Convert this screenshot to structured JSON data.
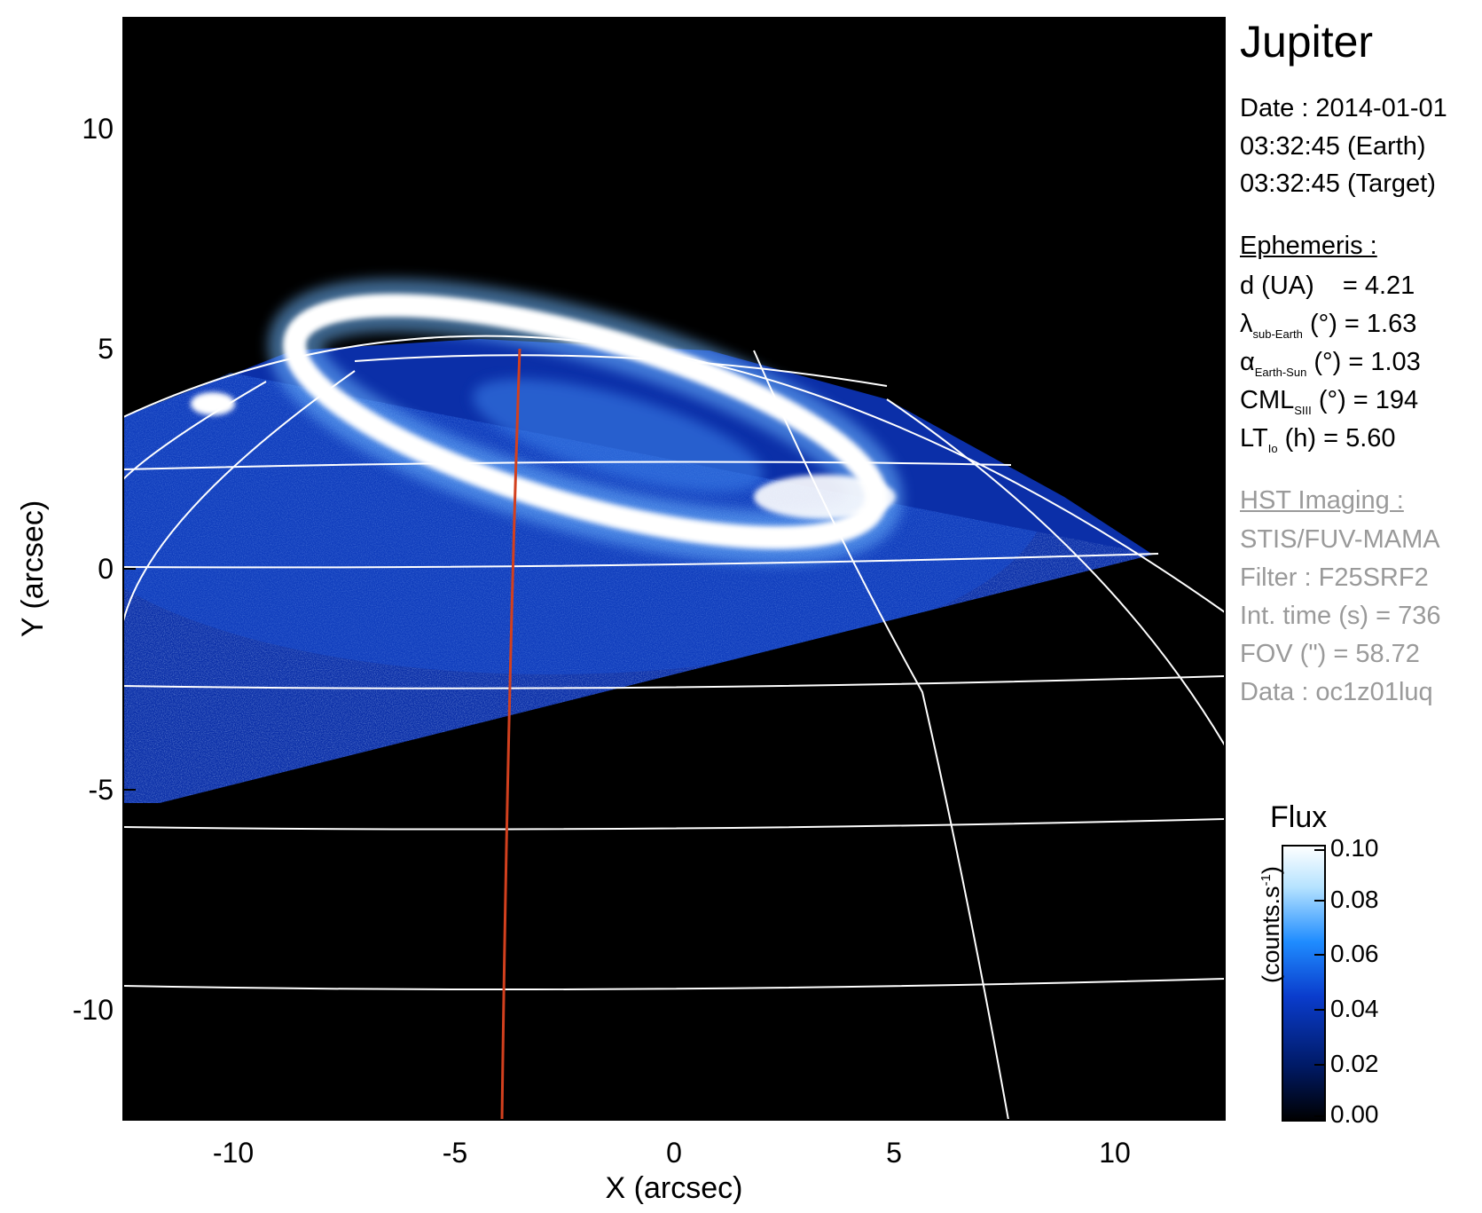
{
  "planet": "Jupiter",
  "date_line": "Date : 2014-01-01",
  "time_earth": "03:32:45 (Earth)",
  "time_target": "03:32:45 (Target)",
  "ephemeris": {
    "heading": "Ephemeris :",
    "d_label": "d (UA)",
    "d_value": "= 4.21",
    "lambda_symbol": "λ",
    "lambda_sub": "sub-Earth",
    "lambda_rest": "(°) = 1.63",
    "alpha_symbol": "α",
    "alpha_sub": "Earth-Sun",
    "alpha_rest": "(°) = 1.03",
    "cml_main": "CML",
    "cml_sub": "SIII",
    "cml_rest": "(°) = 194",
    "lt_main": "LT",
    "lt_sub": "Io",
    "lt_rest": "(h) = 5.60"
  },
  "imaging": {
    "heading": "HST Imaging :",
    "instrument": "STIS/FUV-MAMA",
    "filter": "Filter : F25SRF2",
    "int_time": "Int. time (s) = 736",
    "fov": "FOV (\") = 58.72",
    "data": "Data : oc1z01luq"
  },
  "colorbar": {
    "title": "Flux",
    "unit": "(counts.s",
    "unit_sup": "-1",
    "unit_close": ")",
    "ticks": [
      "0.10",
      "0.08",
      "0.06",
      "0.04",
      "0.02",
      "0.00"
    ],
    "range": [
      0,
      0.1
    ],
    "colors": [
      "#000000",
      "#001a66",
      "#0a3ccc",
      "#1f8cff",
      "#b6e3ff",
      "#ffffff"
    ]
  },
  "axes": {
    "xlabel": "X (arcsec)",
    "ylabel": "Y (arcsec)",
    "xticks": [
      "-10",
      "-5",
      "0",
      "5",
      "10"
    ],
    "yticks": [
      "10",
      "5",
      "0",
      "-5",
      "-10"
    ],
    "xlim": [
      -12.5,
      12.5
    ],
    "ylim": [
      -12.5,
      12.5
    ]
  },
  "colors": {
    "background": "#000000",
    "aurora_blue": "#0a3ccc",
    "grid": "#ffffff",
    "meridian": "#d2401e"
  }
}
